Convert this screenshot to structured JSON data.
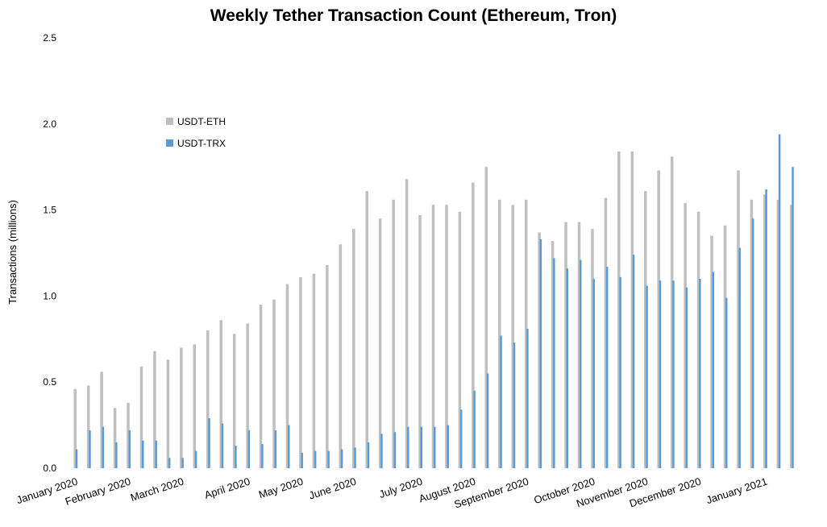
{
  "chart_data": {
    "type": "bar",
    "title": "Weekly Tether Transaction Count (Ethereum, Tron)",
    "xlabel": "",
    "ylabel": "Transactions (millions)",
    "ylim": [
      0,
      2.5
    ],
    "yticks": [
      "0.0",
      "0.5",
      "1.0",
      "1.5",
      "2.0",
      "2.5"
    ],
    "month_labels": [
      "January 2020",
      "February 2020",
      "March 2020",
      "April 2020",
      "May 2020",
      "June 2020",
      "July 2020",
      "August 2020",
      "September 2020",
      "October 2020",
      "November 2020",
      "December 2020",
      "January 2021"
    ],
    "month_label_at_week": [
      0,
      4,
      8,
      13,
      17,
      21,
      26,
      30,
      34,
      39,
      43,
      47,
      52
    ],
    "grid": false,
    "legend": "upper-left",
    "series": [
      {
        "name": "USDT-ETH",
        "color": "#bfbfbf",
        "values": [
          0.46,
          0.48,
          0.56,
          0.35,
          0.38,
          0.59,
          0.68,
          0.63,
          0.7,
          0.72,
          0.8,
          0.86,
          0.78,
          0.84,
          0.95,
          0.98,
          1.07,
          1.11,
          1.13,
          1.18,
          1.3,
          1.39,
          1.61,
          1.45,
          1.56,
          1.68,
          1.47,
          1.53,
          1.53,
          1.49,
          1.66,
          1.75,
          1.56,
          1.53,
          1.56,
          1.37,
          1.32,
          1.43,
          1.43,
          1.39,
          1.57,
          1.84,
          1.84,
          1.61,
          1.73,
          1.81,
          1.54,
          1.49,
          1.35,
          1.41,
          1.73,
          1.56,
          1.59,
          1.56,
          1.53
        ]
      },
      {
        "name": "USDT-TRX",
        "color": "#5b9bd5",
        "values": [
          0.11,
          0.22,
          0.24,
          0.15,
          0.22,
          0.16,
          0.16,
          0.06,
          0.06,
          0.1,
          0.29,
          0.26,
          0.13,
          0.22,
          0.14,
          0.22,
          0.25,
          0.09,
          0.1,
          0.1,
          0.11,
          0.12,
          0.15,
          0.2,
          0.21,
          0.24,
          0.24,
          0.24,
          0.25,
          0.34,
          0.45,
          0.55,
          0.77,
          0.73,
          0.81,
          1.33,
          1.22,
          1.16,
          1.21,
          1.1,
          1.17,
          1.11,
          1.24,
          1.06,
          1.09,
          1.09,
          1.05,
          1.1,
          1.14,
          0.99,
          1.28,
          1.45,
          1.62,
          1.94,
          1.75
        ]
      }
    ]
  }
}
